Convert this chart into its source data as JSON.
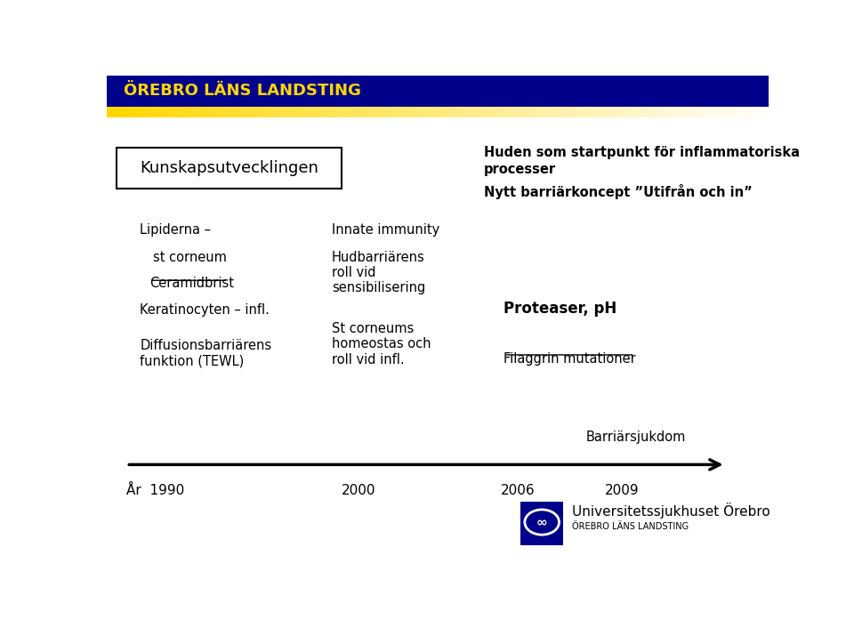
{
  "header_bg": "#00008B",
  "header_text": "ÖREBRO LÄNS LANDSTING",
  "header_text_color": "#FFD700",
  "gold_bar_color": "#FFD700",
  "bg_color": "#FFFFFF",
  "box_text": "Kunskapsutvecklingen",
  "top_right_line1": "Huden som startpunkt för inflammatoriska",
  "top_right_line2": "processer",
  "top_right_line3": "Nytt barriärkoncept ”Utifrån och in”",
  "logo_box_color": "#00008B",
  "logo_text1": "Universitetssjukhuset Örebro",
  "logo_text2": "ÖREBRO LÄNS LANDSTING"
}
